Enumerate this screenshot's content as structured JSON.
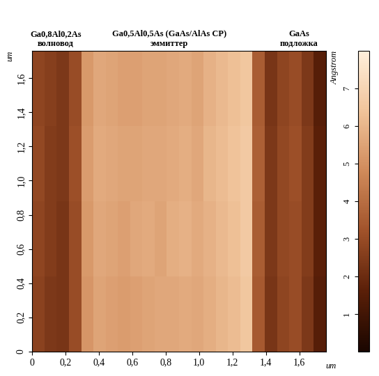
{
  "chart_data": {
    "type": "heatmap",
    "annotations": [
      {
        "text": "Ga0,8Al0,2As\nволновод",
        "x": 0.14
      },
      {
        "text": "Ga0,5Al0,5As (GaAs/AlAs СР)\nэммиттер",
        "x": 0.82
      },
      {
        "text": "GaAs\nподложка",
        "x": 1.6
      }
    ],
    "xlabel": "um",
    "ylabel": "um",
    "xlim": [
      0,
      1.76
    ],
    "ylim": [
      0,
      1.76
    ],
    "xticks": [
      0,
      {
        "value": 0.2,
        "label": "0,2"
      },
      {
        "value": 0.4,
        "label": "0,4"
      },
      {
        "value": 0.6,
        "label": "0,6"
      },
      {
        "value": 0.8,
        "label": "0,8"
      },
      {
        "value": 1.0,
        "label": "1,0"
      },
      {
        "value": 1.2,
        "label": "1,2"
      },
      {
        "value": 1.4,
        "label": "1,4"
      },
      {
        "value": 1.6,
        "label": "1,6"
      }
    ],
    "yticks": [
      0,
      {
        "value": 0.2,
        "label": "0,2"
      },
      {
        "value": 0.4,
        "label": "0,4"
      },
      {
        "value": 0.6,
        "label": "0,6"
      },
      {
        "value": 0.8,
        "label": "0,8"
      },
      {
        "value": 1.0,
        "label": "1,0"
      },
      {
        "value": 1.2,
        "label": "1,2"
      },
      {
        "value": 1.4,
        "label": "1,4"
      },
      {
        "value": 1.6,
        "label": "1,6"
      }
    ],
    "cells": [
      [
        2.7,
        2.4,
        2.3,
        3.0,
        5.1,
        5.5,
        5.4,
        5.3,
        5.4,
        5.5,
        5.6,
        5.6,
        5.7,
        5.6,
        5.8,
        6.0,
        6.2,
        6.5,
        3.4,
        2.3,
        2.8,
        3.0,
        2.4,
        1.5
      ],
      [
        2.8,
        2.5,
        2.3,
        3.0,
        5.2,
        5.6,
        5.5,
        5.4,
        5.6,
        5.7,
        5.5,
        5.8,
        5.9,
        5.7,
        5.9,
        6.1,
        6.3,
        6.6,
        3.5,
        2.4,
        2.9,
        3.0,
        2.5,
        1.6
      ],
      [
        2.9,
        2.5,
        2.4,
        3.1,
        5.3,
        5.7,
        5.6,
        5.5,
        5.5,
        5.6,
        5.6,
        5.7,
        5.8,
        5.6,
        6.0,
        6.2,
        6.4,
        6.6,
        3.6,
        2.4,
        2.9,
        3.1,
        2.5,
        1.6
      ],
      [
        2.8,
        2.6,
        2.4,
        3.0,
        5.2,
        5.6,
        5.5,
        5.4,
        5.4,
        5.5,
        5.5,
        5.6,
        5.7,
        5.5,
        5.9,
        6.1,
        6.3,
        6.5,
        3.5,
        2.3,
        2.8,
        3.0,
        2.4,
        1.5
      ]
    ],
    "colorbar_label": "Angstrom",
    "colorbar_range": [
      0,
      8
    ],
    "colorbar_ticks": [
      1,
      2,
      3,
      4,
      5,
      6,
      7
    ]
  }
}
